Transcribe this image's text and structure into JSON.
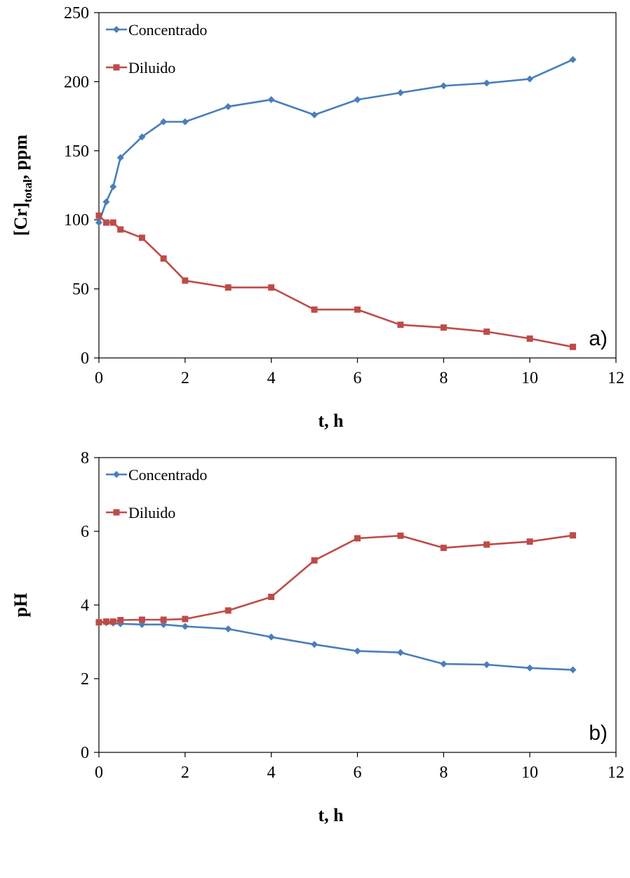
{
  "chart_data": [
    {
      "type": "line",
      "panel_label": "a)",
      "xlabel": "t, h",
      "ylabel_main": "[Cr]",
      "ylabel_sub": "total",
      "ylabel_tail": ", ppm",
      "xlim": [
        0,
        12
      ],
      "ylim": [
        0,
        250
      ],
      "xticks": [
        "0",
        "2",
        "4",
        "6",
        "8",
        "10",
        "12"
      ],
      "yticks": [
        "0",
        "50",
        "100",
        "150",
        "200",
        "250"
      ],
      "grid": false,
      "legend_position": "top-left",
      "series": [
        {
          "name": "Concentrado",
          "color": "#4a7ebb",
          "marker": "diamond",
          "x": [
            0,
            0.17,
            0.33,
            0.5,
            1,
            1.5,
            2,
            3,
            4,
            5,
            6,
            7,
            8,
            9,
            10,
            11
          ],
          "y": [
            98,
            113,
            124,
            145,
            160,
            171,
            171,
            182,
            187,
            176,
            187,
            192,
            197,
            199,
            202,
            216
          ]
        },
        {
          "name": "Diluido",
          "color": "#be4b48",
          "marker": "square",
          "x": [
            0,
            0.17,
            0.33,
            0.5,
            1,
            1.5,
            2,
            3,
            4,
            5,
            6,
            7,
            8,
            9,
            10,
            11
          ],
          "y": [
            103,
            98,
            98,
            93,
            87,
            72,
            56,
            51,
            51,
            35,
            35,
            24,
            22,
            19,
            14,
            8
          ]
        }
      ]
    },
    {
      "type": "line",
      "panel_label": "b)",
      "xlabel": "t, h",
      "ylabel": "pH",
      "xlim": [
        0,
        12
      ],
      "ylim": [
        0,
        8
      ],
      "xticks": [
        "0",
        "2",
        "4",
        "6",
        "8",
        "10",
        "12"
      ],
      "yticks": [
        "0",
        "2",
        "4",
        "6",
        "8"
      ],
      "grid": false,
      "legend_position": "top-left",
      "series": [
        {
          "name": "Concentrado",
          "color": "#4a7ebb",
          "marker": "diamond",
          "x": [
            0,
            0.17,
            0.33,
            0.5,
            1,
            1.5,
            2,
            3,
            4,
            5,
            6,
            7,
            8,
            9,
            10,
            11
          ],
          "y": [
            3.53,
            3.52,
            3.51,
            3.49,
            3.47,
            3.47,
            3.42,
            3.35,
            3.13,
            2.93,
            2.75,
            2.71,
            2.4,
            2.38,
            2.29,
            2.24
          ]
        },
        {
          "name": "Diluido",
          "color": "#be4b48",
          "marker": "square",
          "x": [
            0,
            0.17,
            0.33,
            0.5,
            1,
            1.5,
            2,
            3,
            4,
            5,
            6,
            7,
            8,
            9,
            10,
            11
          ],
          "y": [
            3.53,
            3.55,
            3.55,
            3.59,
            3.6,
            3.6,
            3.62,
            3.85,
            4.22,
            5.21,
            5.81,
            5.88,
            5.55,
            5.64,
            5.72,
            5.89
          ]
        }
      ]
    }
  ]
}
